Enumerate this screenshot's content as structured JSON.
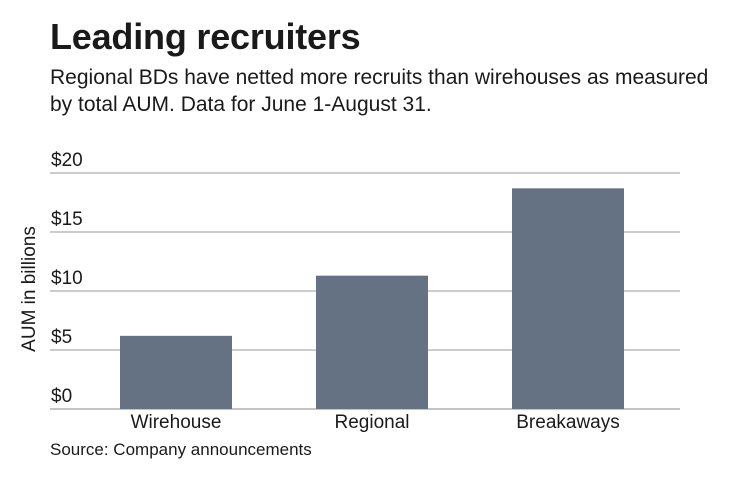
{
  "title": "Leading recruiters",
  "subtitle": "Regional BDs have netted more recruits than wirehouses as measured by total AUM. Data for June 1-August 31.",
  "source": "Source: Company announcements",
  "colors": {
    "bar": "#647284",
    "grid": "#999999",
    "text": "#1a1a1a"
  },
  "chart_data": {
    "type": "bar",
    "title": "Leading recruiters",
    "subtitle": "Regional BDs have netted more recruits than wirehouses as measured by total AUM. Data for June 1-August 31.",
    "xlabel": "",
    "ylabel": "AUM in billions",
    "categories": [
      "Wirehouse",
      "Regional",
      "Breakaways"
    ],
    "values": [
      6.2,
      11.3,
      18.7
    ],
    "ylim": [
      0,
      20
    ],
    "yticks": [
      0,
      5,
      10,
      15,
      20
    ],
    "ytick_labels": [
      "$0",
      "$5",
      "$10",
      "$15",
      "$20"
    ],
    "grid": true,
    "legend": "none"
  }
}
